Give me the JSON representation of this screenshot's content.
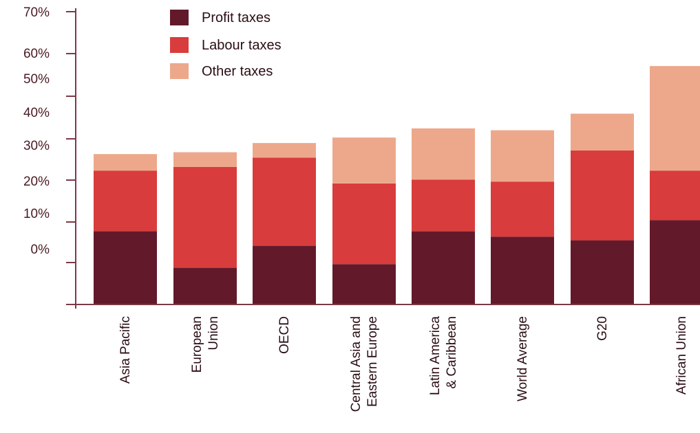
{
  "chart_data": {
    "type": "bar",
    "stacked": true,
    "categories": [
      "Asia Pacific",
      "European Union",
      "OECD",
      "Central Asia and Eastern Europe",
      "Latin America & Caribbean",
      "World Average",
      "G20",
      "African Union"
    ],
    "category_lines": [
      [
        "Asia Pacific"
      ],
      [
        "European",
        "Union"
      ],
      [
        "OECD"
      ],
      [
        "Central Asia and",
        "Eastern  Europe"
      ],
      [
        "Latin America",
        "& Caribbean"
      ],
      [
        "World Average"
      ],
      [
        "G20"
      ],
      [
        "African Union"
      ]
    ],
    "series": [
      {
        "name": "Profit taxes",
        "color": "#621a2b",
        "values": [
          20,
          10,
          16,
          11,
          20,
          18.5,
          17.5,
          23
        ]
      },
      {
        "name": "Labour taxes",
        "color": "#d93c3c",
        "values": [
          16.5,
          27.5,
          24,
          22,
          14,
          15,
          24.5,
          13.5
        ]
      },
      {
        "name": "Other taxes",
        "color": "#eda88c",
        "values": [
          4.5,
          4,
          4,
          12.5,
          14,
          14,
          10,
          28.5
        ]
      }
    ],
    "y_tick_labels": [
      "70%",
      "60%",
      "50%",
      "40%",
      "30%",
      "20%",
      "10%",
      "0%"
    ],
    "ylim": [
      -10,
      70
    ],
    "legend_position": "top-left",
    "grid": false,
    "title": "",
    "xlabel": "",
    "ylabel": ""
  }
}
